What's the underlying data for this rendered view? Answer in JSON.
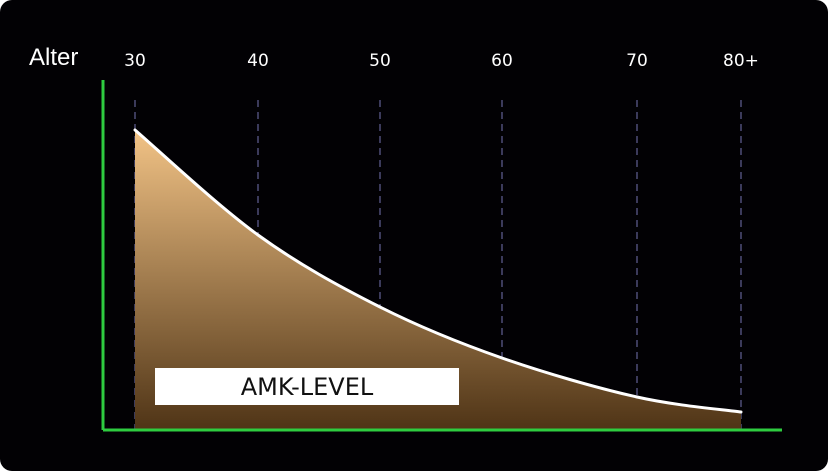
{
  "chart_data": {
    "type": "area",
    "title": "",
    "xlabel": "Alter",
    "ylabel": "",
    "categories": [
      "30",
      "40",
      "50",
      "60",
      "70",
      "80+"
    ],
    "x": [
      30,
      40,
      50,
      60,
      70,
      80
    ],
    "series": [
      {
        "name": "AMK-LEVEL",
        "values": [
          100,
          65,
          41,
          24,
          11,
          6
        ]
      }
    ],
    "ylim": [
      0,
      110
    ],
    "grid": "vertical-dashed",
    "colors": {
      "background": "#020104",
      "axis": "#2ecc40",
      "gridline": "#5a5a8a",
      "curve": "#ffffff",
      "fill_top": "#f2c386",
      "fill_bottom": "#4f3416"
    }
  }
}
